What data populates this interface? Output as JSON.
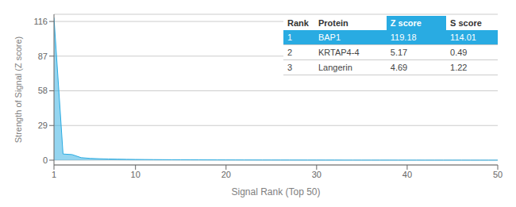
{
  "chart_data": {
    "type": "area",
    "xlabel": "Signal Rank (Top 50)",
    "ylabel": "Strength of Signal (Z score)",
    "x": [
      1,
      2,
      3,
      4,
      5,
      6,
      7,
      8,
      9,
      10,
      11,
      12,
      13,
      14,
      15,
      16,
      17,
      18,
      19,
      20,
      21,
      22,
      23,
      24,
      25,
      26,
      27,
      28,
      29,
      30,
      31,
      32,
      33,
      34,
      35,
      36,
      37,
      38,
      39,
      40,
      41,
      42,
      43,
      44,
      45,
      46,
      47,
      48,
      49,
      50
    ],
    "values": [
      119.18,
      5.17,
      4.69,
      2.1,
      1.5,
      1.2,
      1.0,
      0.85,
      0.72,
      0.62,
      0.54,
      0.47,
      0.42,
      0.37,
      0.33,
      0.3,
      0.27,
      0.24,
      0.22,
      0.2,
      0.18,
      0.16,
      0.15,
      0.13,
      0.12,
      0.11,
      0.1,
      0.09,
      0.08,
      0.075,
      0.07,
      0.065,
      0.06,
      0.055,
      0.05,
      0.047,
      0.044,
      0.041,
      0.038,
      0.035,
      0.033,
      0.03,
      0.028,
      0.026,
      0.024,
      0.022,
      0.02,
      0.018,
      0.016,
      0.014
    ],
    "color": "#29abe2",
    "xlim": [
      1,
      50
    ],
    "ylim": [
      -4,
      122
    ],
    "xticks": [
      1,
      10,
      20,
      30,
      40,
      50
    ],
    "yticks": [
      0,
      29,
      58,
      87,
      116
    ],
    "grid": "y",
    "table": [
      [
        "Rank",
        "Protein",
        "Z score",
        "S score"
      ],
      [
        "1",
        "BAP1",
        "119.18",
        "114.01"
      ],
      [
        "2",
        "KRTAP4-4",
        "5.17",
        "0.49"
      ],
      [
        "3",
        "Langerin",
        "4.69",
        "1.22"
      ]
    ]
  }
}
